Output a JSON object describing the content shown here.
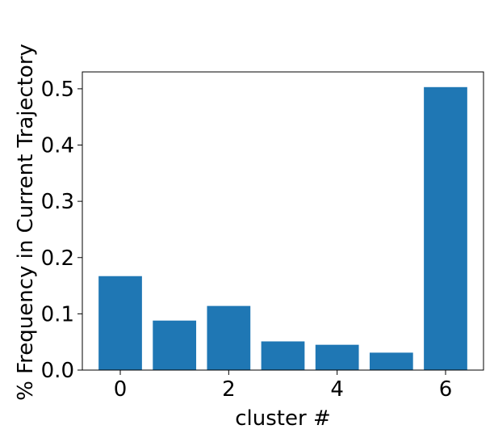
{
  "chart_data": {
    "type": "bar",
    "title": "",
    "xlabel": "cluster #",
    "ylabel": "% Frequency in Current Trajectory",
    "categories": [
      0,
      1,
      2,
      3,
      4,
      5,
      6
    ],
    "values": [
      0.167,
      0.088,
      0.114,
      0.051,
      0.045,
      0.031,
      0.503
    ],
    "xticks": [
      "0",
      "2",
      "4",
      "6"
    ],
    "yticks": [
      "0.0",
      "0.1",
      "0.2",
      "0.3",
      "0.4",
      "0.5"
    ],
    "xlim": [
      -0.7,
      6.7
    ],
    "ylim": [
      0,
      0.53
    ],
    "grid": false,
    "bar_color": "#1f77b4"
  }
}
